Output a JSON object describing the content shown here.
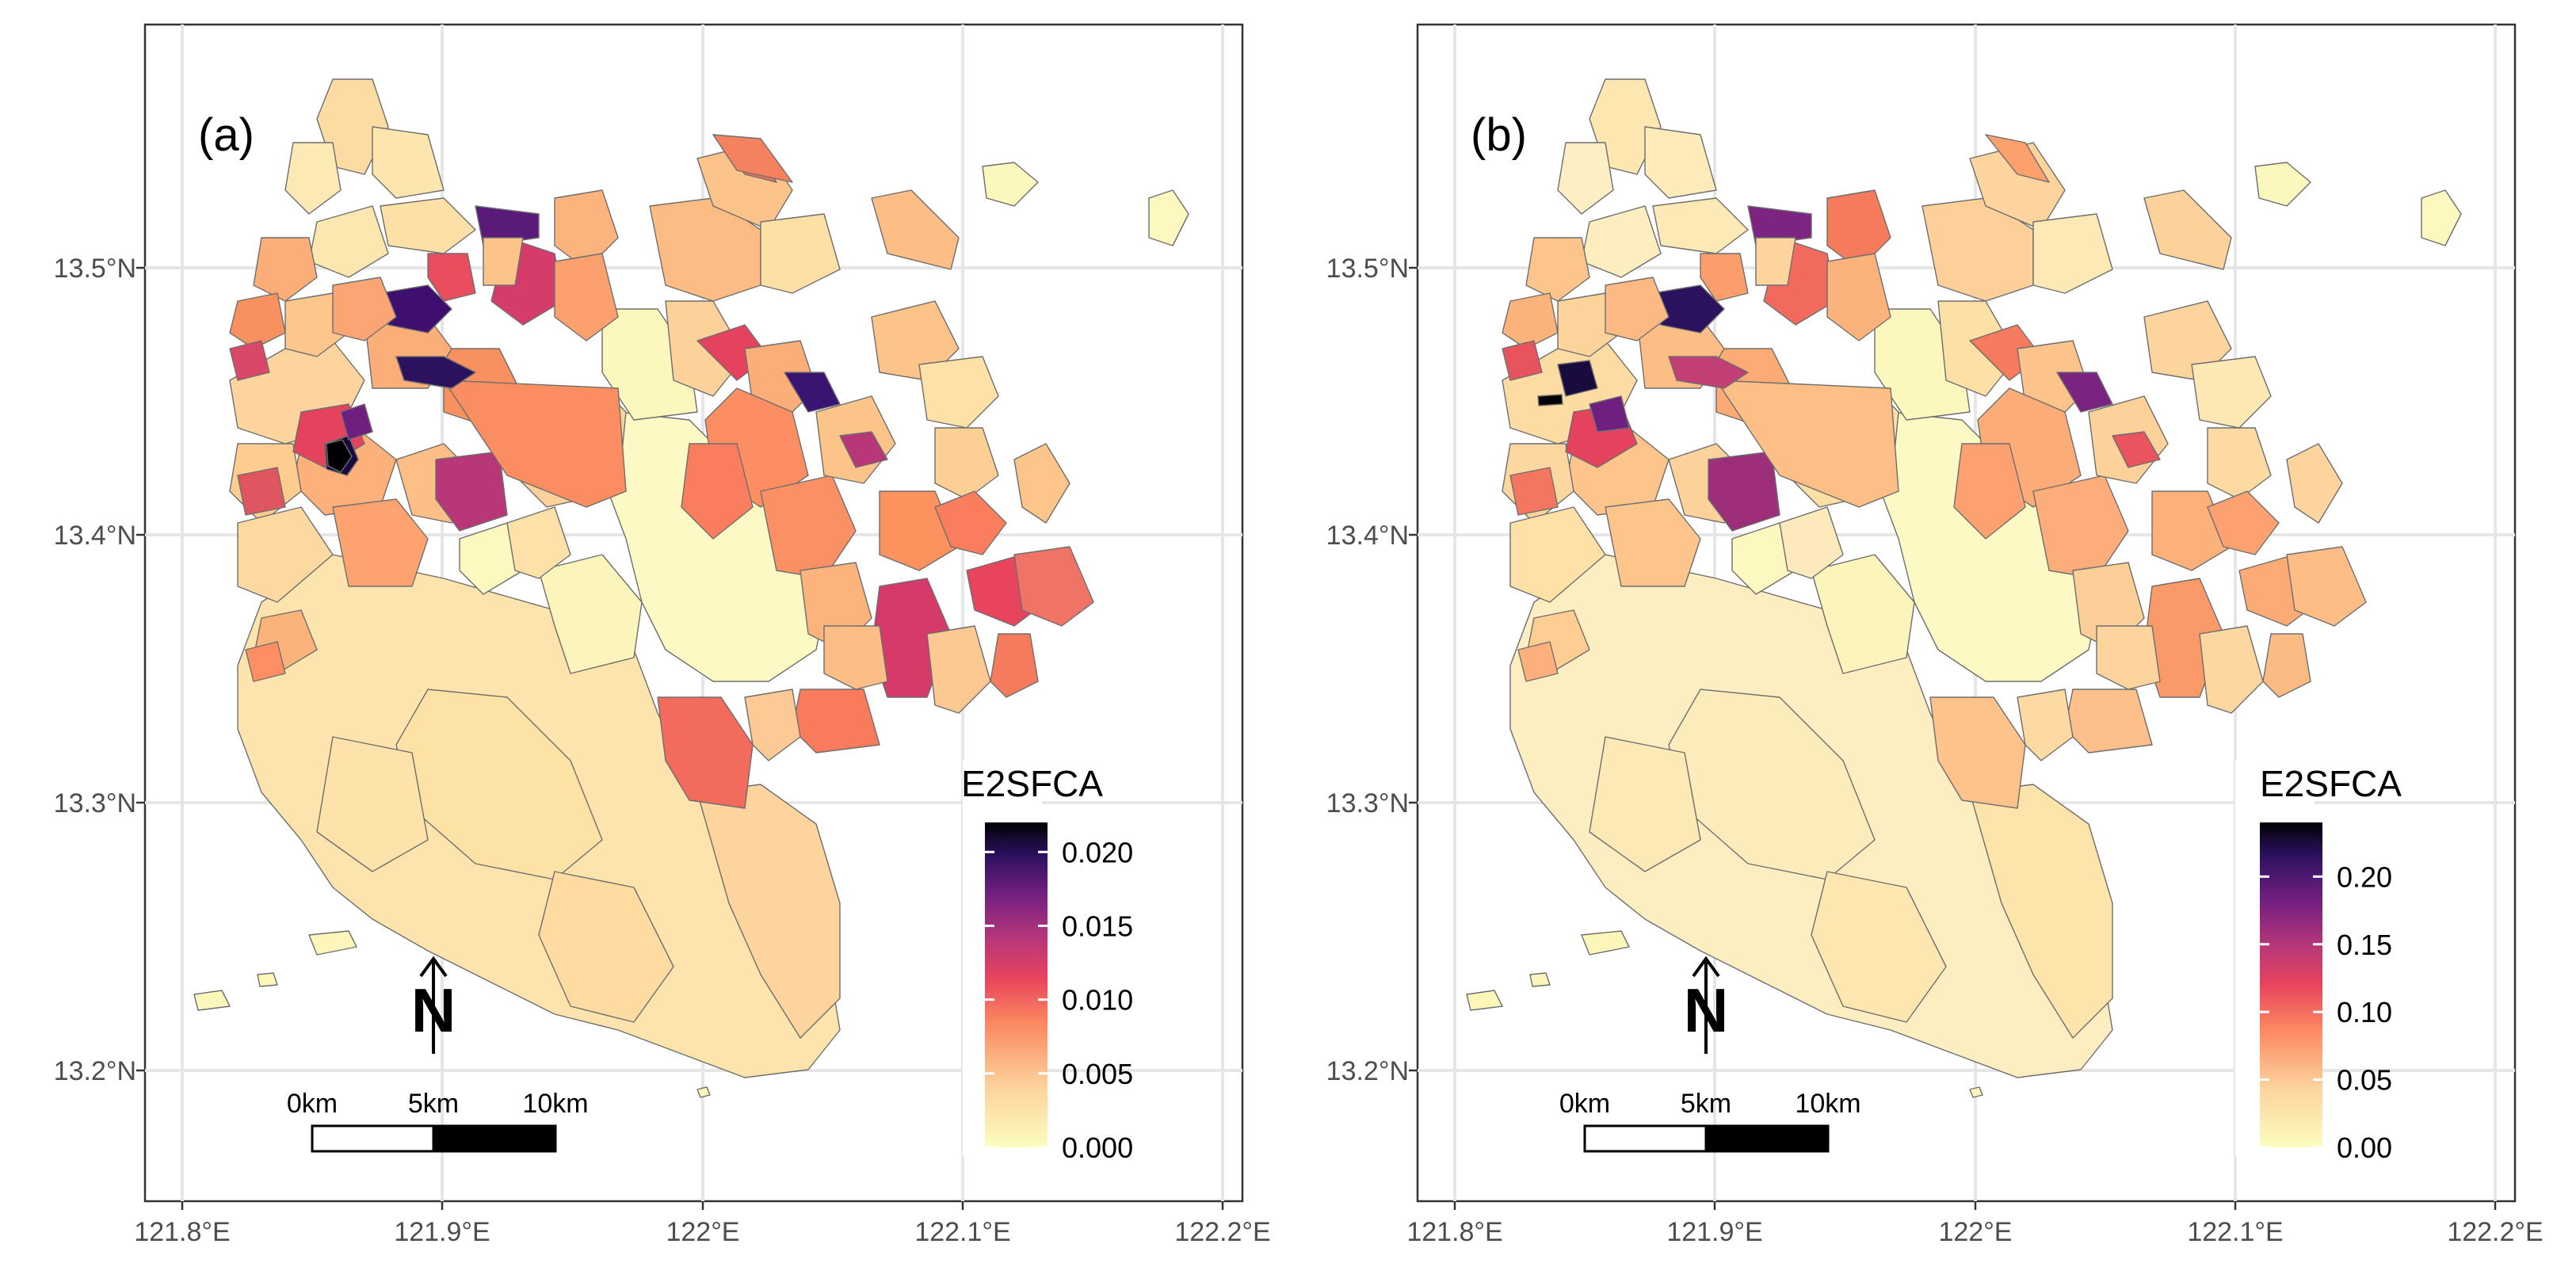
{
  "colors": {
    "panel_border": "#333333",
    "grid": "#e6e6e6",
    "polygon_stroke": "#6e6e6e",
    "scale_stops": [
      "#fcfdbf",
      "#fdd49e",
      "#fc8961",
      "#e8445d",
      "#b73779",
      "#721f81",
      "#2c115f",
      "#000004"
    ]
  },
  "axes": {
    "x_ticks": [
      "121.8°E",
      "121.9°E",
      "122°E",
      "122.1°E",
      "122.2°E"
    ],
    "y_ticks": [
      "13.5°N",
      "13.4°N",
      "13.3°N",
      "13.2°N"
    ]
  },
  "panels": [
    {
      "tag": "(a)",
      "legend": {
        "title": "E2SFCA",
        "labels": [
          "0.020",
          "0.015",
          "0.010",
          "0.005",
          "0.000"
        ],
        "values": [
          0.02,
          0.015,
          0.01,
          0.005,
          0.0
        ],
        "max": 0.022
      },
      "north_arrow": "N",
      "scale_bar": {
        "labels": [
          "0km",
          "5km",
          "10km"
        ]
      }
    },
    {
      "tag": "(b)",
      "legend": {
        "title": "E2SFCA",
        "labels": [
          "0.20",
          "0.15",
          "0.10",
          "0.05",
          "0.00"
        ],
        "values": [
          0.2,
          0.15,
          0.1,
          0.05,
          0.0
        ],
        "max": 0.24
      },
      "north_arrow": "N",
      "scale_bar": {
        "labels": [
          "0km",
          "5km",
          "10km"
        ]
      }
    }
  ]
}
